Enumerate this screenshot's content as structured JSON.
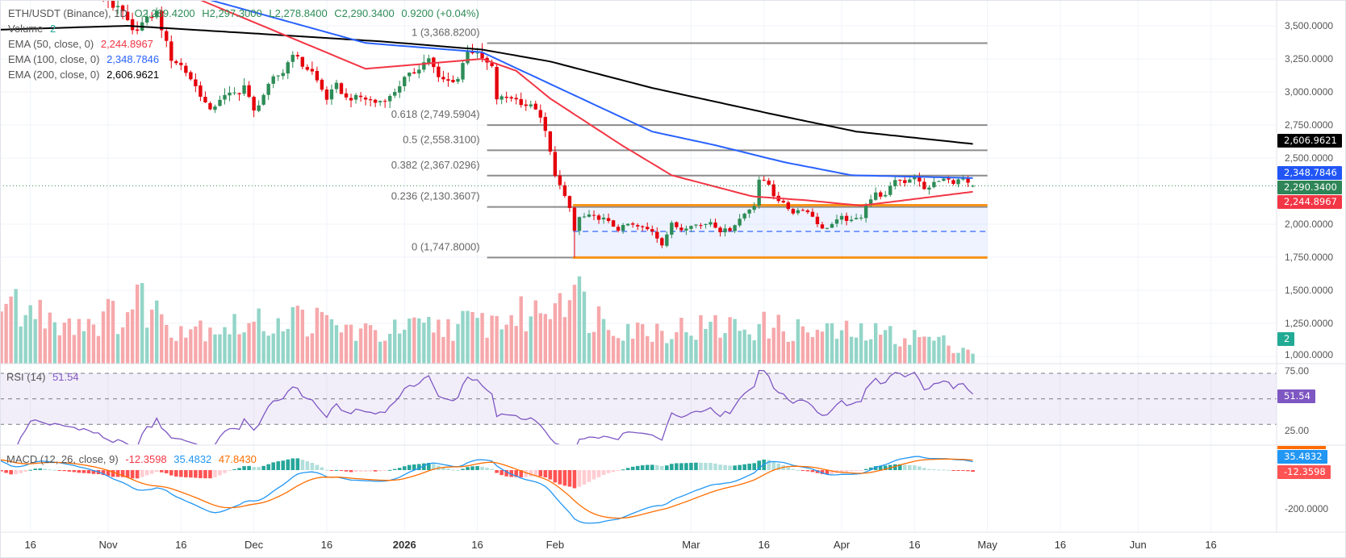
{
  "header": {
    "symbol": "ETH/USDT (Binance), 1D",
    "open": "O2,289.4200",
    "high": "H2,297.3000",
    "low": "L2,278.8400",
    "close": "C2,290.3400",
    "change": "0.9200 (+0.04%)"
  },
  "legend": {
    "volume_label": "Volume",
    "volume_value": "2",
    "ema50_label": "EMA (50, close, 0)",
    "ema50_value": "2,244.8967",
    "ema100_label": "EMA (100, close, 0)",
    "ema100_value": "2,348.7846",
    "ema200_label": "EMA (200, close, 0)",
    "ema200_value": "2,606.9621",
    "rsi_label": "RSI (14)",
    "rsi_value": "51.54",
    "macd_label": "MACD (12, 26, close, 9)",
    "macd_hist_value": "-12.3598",
    "macd_value": "35.4832",
    "macd_signal_value": "47.8430"
  },
  "axis_tags": {
    "ema200": "2,606.9621",
    "ema100": "2,348.7846",
    "last_price": "2,290.3400",
    "ema50": "2,244.8967",
    "volume": "2",
    "rsi": "51.54",
    "macd": "35.4832",
    "macd_hist": "-12.3598"
  },
  "colors": {
    "up": "#2e8c57",
    "down": "#e5000b",
    "vol_up": "#93d5c8",
    "vol_down": "#f6a8ab",
    "ema50": "#f23645",
    "ema100": "#2962ff",
    "ema200": "#000000",
    "rsi": "#7e57c2",
    "macd": "#2196f3",
    "signal": "#ff6d00",
    "hist_up_strong": "#26a69a",
    "hist_up_weak": "#b2dfdb",
    "hist_down_strong": "#ff5252",
    "hist_down_weak": "#ffcdd2",
    "fib": "#8c8c8c",
    "range": "#f7931a"
  },
  "chart_data": {
    "type": "candlestick",
    "title": "ETH/USDT (Binance), 1D",
    "day_origin": "2025-10-16",
    "last_bar": {
      "open": 2289.42,
      "high": 2297.3,
      "low": 2278.84,
      "close": 2290.34
    },
    "close_waypoints": [
      [
        -7,
        3900
      ],
      [
        -4,
        3750
      ],
      [
        0,
        4050
      ],
      [
        5,
        3950
      ],
      [
        10,
        3900
      ],
      [
        14,
        3800
      ],
      [
        17,
        3650
      ],
      [
        19,
        3600
      ],
      [
        21,
        3450
      ],
      [
        23,
        3520
      ],
      [
        26,
        3600
      ],
      [
        29,
        3250
      ],
      [
        31,
        3200
      ],
      [
        33,
        3100
      ],
      [
        35,
        2980
      ],
      [
        37,
        2850
      ],
      [
        39,
        2950
      ],
      [
        41,
        2980
      ],
      [
        43,
        3000
      ],
      [
        44,
        3050
      ],
      [
        46,
        2850
      ],
      [
        48,
        2980
      ],
      [
        50,
        3100
      ],
      [
        52,
        3150
      ],
      [
        54,
        3300
      ],
      [
        56,
        3200
      ],
      [
        58,
        3150
      ],
      [
        61,
        2950
      ],
      [
        63,
        3050
      ],
      [
        65,
        2950
      ],
      [
        68,
        2960
      ],
      [
        71,
        2920
      ],
      [
        74,
        2960
      ],
      [
        77,
        3100
      ],
      [
        79,
        3150
      ],
      [
        82,
        3260
      ],
      [
        84,
        3100
      ],
      [
        86,
        3080
      ],
      [
        88,
        3100
      ],
      [
        90,
        3330
      ],
      [
        93,
        3250
      ],
      [
        95,
        3180
      ],
      [
        96,
        2950
      ],
      [
        99,
        2960
      ],
      [
        102,
        2900
      ],
      [
        104,
        2880
      ],
      [
        106,
        2700
      ],
      [
        108,
        2380
      ],
      [
        110,
        2200
      ],
      [
        111,
        2120
      ],
      [
        112,
        1950
      ],
      [
        113,
        2050
      ],
      [
        115,
        2060
      ],
      [
        118,
        2040
      ],
      [
        121,
        1960
      ],
      [
        123,
        2000
      ],
      [
        126,
        1970
      ],
      [
        128,
        1950
      ],
      [
        130,
        1850
      ],
      [
        132,
        2000
      ],
      [
        134,
        1960
      ],
      [
        136,
        2000
      ],
      [
        138,
        1990
      ],
      [
        140,
        2020
      ],
      [
        142,
        1950
      ],
      [
        144,
        1960
      ],
      [
        147,
        2080
      ],
      [
        149,
        2150
      ],
      [
        150,
        2340
      ],
      [
        152,
        2300
      ],
      [
        153,
        2220
      ],
      [
        155,
        2150
      ],
      [
        157,
        2090
      ],
      [
        159,
        2120
      ],
      [
        161,
        2060
      ],
      [
        163,
        1960
      ],
      [
        165,
        2000
      ],
      [
        167,
        2050
      ],
      [
        169,
        2020
      ],
      [
        171,
        2060
      ],
      [
        172,
        2150
      ],
      [
        174,
        2230
      ],
      [
        176,
        2210
      ],
      [
        178,
        2340
      ],
      [
        180,
        2320
      ],
      [
        182,
        2370
      ],
      [
        184,
        2260
      ],
      [
        186,
        2310
      ],
      [
        188,
        2340
      ],
      [
        190,
        2320
      ],
      [
        192,
        2340
      ],
      [
        193,
        2300
      ],
      [
        194,
        2290.34
      ]
    ],
    "extremes": [
      {
        "day": 93,
        "high": 3368.82
      },
      {
        "day": 112,
        "low": 1747.8
      }
    ],
    "volume_waypoints": [
      [
        -7,
        70
      ],
      [
        10,
        50
      ],
      [
        20,
        60
      ],
      [
        22,
        78
      ],
      [
        30,
        45
      ],
      [
        45,
        45
      ],
      [
        55,
        55
      ],
      [
        70,
        35
      ],
      [
        85,
        45
      ],
      [
        95,
        50
      ],
      [
        104,
        60
      ],
      [
        108,
        80
      ],
      [
        111,
        100
      ],
      [
        115,
        60
      ],
      [
        125,
        40
      ],
      [
        150,
        45
      ],
      [
        160,
        38
      ],
      [
        175,
        35
      ],
      [
        185,
        30
      ],
      [
        194,
        15
      ]
    ],
    "ema50_waypoints": [
      [
        -7,
        4000
      ],
      [
        35,
        3695
      ],
      [
        69,
        3175
      ],
      [
        93,
        3250
      ],
      [
        100,
        3160
      ],
      [
        107,
        2950
      ],
      [
        121.6,
        2600
      ],
      [
        132,
        2370
      ],
      [
        148.6,
        2210
      ],
      [
        160,
        2180
      ],
      [
        171,
        2140
      ],
      [
        194,
        2244.8967
      ]
    ],
    "ema100_waypoints": [
      [
        -7,
        3850
      ],
      [
        37,
        3695
      ],
      [
        69,
        3370
      ],
      [
        93,
        3300
      ],
      [
        107,
        3060
      ],
      [
        128,
        2700
      ],
      [
        141,
        2597
      ],
      [
        155,
        2470
      ],
      [
        169,
        2370
      ],
      [
        194,
        2348.7846
      ]
    ],
    "ema200_waypoints": [
      [
        -7,
        3470
      ],
      [
        20,
        3500
      ],
      [
        47,
        3440
      ],
      [
        73,
        3380
      ],
      [
        93,
        3320
      ],
      [
        107,
        3230
      ],
      [
        128,
        3030
      ],
      [
        153,
        2830
      ],
      [
        170,
        2700
      ],
      [
        194,
        2606.9621
      ]
    ],
    "price_axis": {
      "ticks": [
        {
          "value": 3500,
          "label": "3,500.0000"
        },
        {
          "value": 3250,
          "label": "3,250.0000"
        },
        {
          "value": 3000,
          "label": "3,000.0000"
        },
        {
          "value": 2750,
          "label": "2,750.0000"
        },
        {
          "value": 2500,
          "label": "2,500.0000"
        },
        {
          "value": 2000,
          "label": "2,000.0000"
        },
        {
          "value": 1750,
          "label": "1,750.0000"
        },
        {
          "value": 1500,
          "label": "1,500.0000"
        },
        {
          "value": 1250,
          "label": "1,250.0000"
        },
        {
          "value": 1000,
          "label": "1,000.0000"
        }
      ]
    },
    "rsi_axis": {
      "ticks": [
        {
          "value": 75,
          "label": "75.00"
        },
        {
          "value": 25,
          "label": "25.00"
        }
      ],
      "bands": [
        70,
        50,
        30
      ]
    },
    "macd_axis": {
      "ticks": [
        {
          "value": -200,
          "label": "-200.0000"
        }
      ]
    },
    "x_ticks": [
      {
        "label": "16",
        "date": "2025-10-16"
      },
      {
        "label": "Nov",
        "date": "2025-11-01"
      },
      {
        "label": "16",
        "date": "2025-11-16"
      },
      {
        "label": "Dec",
        "date": "2025-12-01"
      },
      {
        "label": "16",
        "date": "2025-12-16"
      },
      {
        "label": "2026",
        "date": "2026-01-01",
        "bold": true
      },
      {
        "label": "16",
        "date": "2026-01-16"
      },
      {
        "label": "Feb",
        "date": "2026-02-01"
      },
      {
        "label": "Mar",
        "date": "2026-03-01"
      },
      {
        "label": "16",
        "date": "2026-03-16"
      },
      {
        "label": "Apr",
        "date": "2026-04-01"
      },
      {
        "label": "16",
        "date": "2026-04-16"
      },
      {
        "label": "May",
        "date": "2026-05-01"
      },
      {
        "label": "16",
        "date": "2026-05-16"
      },
      {
        "label": "Jun",
        "date": "2026-06-01"
      },
      {
        "label": "16",
        "date": "2026-06-16"
      }
    ],
    "fibonacci": {
      "start_day": 94,
      "end_day": 197,
      "levels": [
        {
          "ratio": 1,
          "price": 3368.82,
          "label": "1 (3,368.8200)"
        },
        {
          "ratio": 0.618,
          "price": 2749.5904,
          "label": "0.618 (2,749.5904)"
        },
        {
          "ratio": 0.5,
          "price": 2558.31,
          "label": "0.5 (2,558.3100)"
        },
        {
          "ratio": 0.382,
          "price": 2367.0296,
          "label": "0.382 (2,367.0296)"
        },
        {
          "ratio": 0.236,
          "price": 2130.3607,
          "label": "0.236 (2,130.3607)"
        },
        {
          "ratio": 0,
          "price": 1747.8,
          "label": "0 (1,747.8000)"
        }
      ]
    },
    "range_box": {
      "start_day": 111.7,
      "end_day": 197,
      "top": 2143,
      "bottom": 1747.8
    },
    "last_price": 2290.34
  }
}
